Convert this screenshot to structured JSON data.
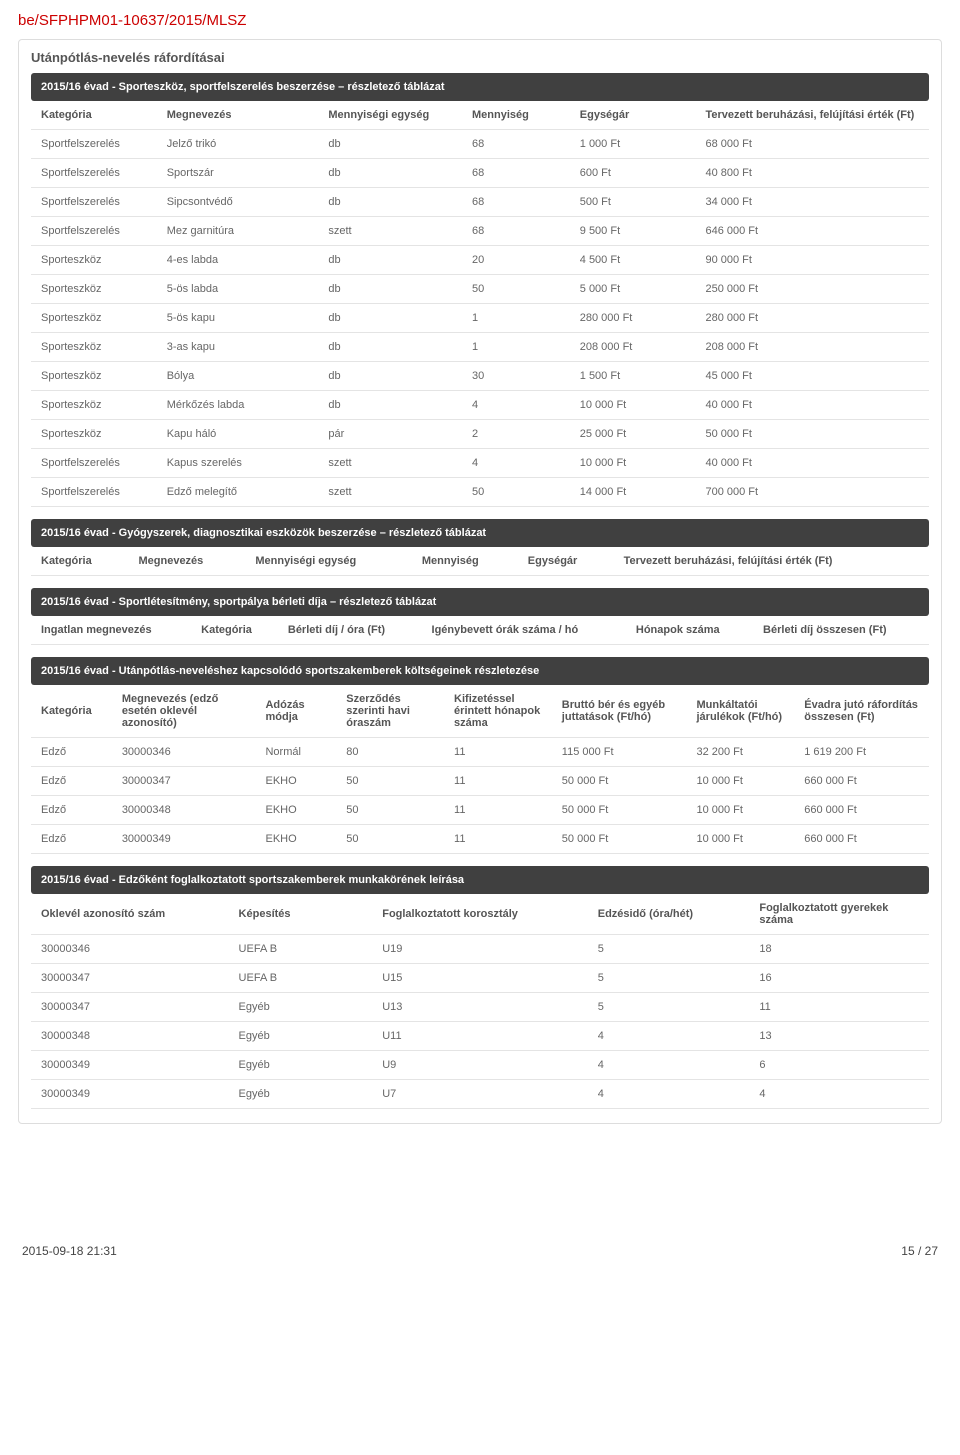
{
  "doc_id": "be/SFPHPM01-10637/2015/MLSZ",
  "panel_title": "Utánpótlás-nevelés ráfordításai",
  "table1": {
    "bar": "2015/16 évad - Sporteszköz, sportfelszerelés beszerzése – részletező táblázat",
    "headers": [
      "Kategória",
      "Megnevezés",
      "Mennyiségi egység",
      "Mennyiség",
      "Egységár",
      "Tervezett beruházási, felújítási érték (Ft)"
    ],
    "rows": [
      [
        "Sportfelszerelés",
        "Jelző trikó",
        "db",
        "68",
        "1 000 Ft",
        "68 000 Ft"
      ],
      [
        "Sportfelszerelés",
        "Sportszár",
        "db",
        "68",
        "600 Ft",
        "40 800 Ft"
      ],
      [
        "Sportfelszerelés",
        "Sipcsontvédő",
        "db",
        "68",
        "500 Ft",
        "34 000 Ft"
      ],
      [
        "Sportfelszerelés",
        "Mez garnitúra",
        "szett",
        "68",
        "9 500 Ft",
        "646 000 Ft"
      ],
      [
        "Sporteszköz",
        "4-es labda",
        "db",
        "20",
        "4 500 Ft",
        "90 000 Ft"
      ],
      [
        "Sporteszköz",
        "5-ös labda",
        "db",
        "50",
        "5 000 Ft",
        "250 000 Ft"
      ],
      [
        "Sporteszköz",
        "5-ös kapu",
        "db",
        "1",
        "280 000 Ft",
        "280 000 Ft"
      ],
      [
        "Sporteszköz",
        "3-as kapu",
        "db",
        "1",
        "208 000 Ft",
        "208 000 Ft"
      ],
      [
        "Sporteszköz",
        "Bólya",
        "db",
        "30",
        "1 500 Ft",
        "45 000 Ft"
      ],
      [
        "Sporteszköz",
        "Mérkőzés labda",
        "db",
        "4",
        "10 000 Ft",
        "40 000 Ft"
      ],
      [
        "Sporteszköz",
        "Kapu háló",
        "pár",
        "2",
        "25 000 Ft",
        "50 000 Ft"
      ],
      [
        "Sportfelszerelés",
        "Kapus szerelés",
        "szett",
        "4",
        "10 000 Ft",
        "40 000 Ft"
      ],
      [
        "Sportfelszerelés",
        "Edző melegítő",
        "szett",
        "50",
        "14 000 Ft",
        "700 000 Ft"
      ]
    ]
  },
  "table2": {
    "bar": "2015/16 évad - Gyógyszerek, diagnosztikai eszközök beszerzése – részletező táblázat",
    "headers": [
      "Kategória",
      "Megnevezés",
      "Mennyiségi egység",
      "Mennyiség",
      "Egységár",
      "Tervezett beruházási, felújítási érték (Ft)"
    ]
  },
  "table3": {
    "bar": "2015/16 évad - Sportlétesítmény, sportpálya bérleti díja – részletező táblázat",
    "headers": [
      "Ingatlan megnevezés",
      "Kategória",
      "Bérleti díj / óra (Ft)",
      "Igénybevett órák száma / hó",
      "Hónapok száma",
      "Bérleti díj összesen (Ft)"
    ]
  },
  "table4": {
    "bar": "2015/16 évad - Utánpótlás-neveléshez kapcsolódó sportszakemberek költségeinek részletezése",
    "headers": [
      "Kategória",
      "Megnevezés (edző esetén oklevél azonosító)",
      "Adózás módja",
      "Szerződés szerinti havi óraszám",
      "Kifizetéssel érintett hónapok száma",
      "Bruttó bér és egyéb juttatások (Ft/hó)",
      "Munkáltatói járulékok (Ft/hó)",
      "Évadra jutó ráfordítás összesen (Ft)"
    ],
    "rows": [
      [
        "Edző",
        "30000346",
        "Normál",
        "80",
        "11",
        "115 000 Ft",
        "32 200 Ft",
        "1 619 200 Ft"
      ],
      [
        "Edző",
        "30000347",
        "EKHO",
        "50",
        "11",
        "50 000 Ft",
        "10 000 Ft",
        "660 000 Ft"
      ],
      [
        "Edző",
        "30000348",
        "EKHO",
        "50",
        "11",
        "50 000 Ft",
        "10 000 Ft",
        "660 000 Ft"
      ],
      [
        "Edző",
        "30000349",
        "EKHO",
        "50",
        "11",
        "50 000 Ft",
        "10 000 Ft",
        "660 000 Ft"
      ]
    ]
  },
  "table5": {
    "bar": "2015/16 évad - Edzőként foglalkoztatott sportszakemberek munkakörének leírása",
    "headers": [
      "Oklevél azonosító szám",
      "Képesítés",
      "Foglalkoztatott korosztály",
      "Edzésidő (óra/hét)",
      "Foglalkoztatott gyerekek száma"
    ],
    "rows": [
      [
        "30000346",
        "UEFA B",
        "U19",
        "5",
        "18"
      ],
      [
        "30000347",
        "UEFA B",
        "U15",
        "5",
        "16"
      ],
      [
        "30000347",
        "Egyéb",
        "U13",
        "5",
        "11"
      ],
      [
        "30000348",
        "Egyéb",
        "U11",
        "4",
        "13"
      ],
      [
        "30000349",
        "Egyéb",
        "U9",
        "4",
        "6"
      ],
      [
        "30000349",
        "Egyéb",
        "U7",
        "4",
        "4"
      ]
    ]
  },
  "footer": {
    "timestamp": "2015-09-18 21:31",
    "page": "15 / 27"
  },
  "colwidths": {
    "t1": [
      "14%",
      "18%",
      "16%",
      "12%",
      "14%",
      "26%"
    ],
    "t4": [
      "9%",
      "16%",
      "9%",
      "12%",
      "12%",
      "15%",
      "12%",
      "15%"
    ],
    "t5": [
      "22%",
      "16%",
      "24%",
      "18%",
      "20%"
    ]
  }
}
